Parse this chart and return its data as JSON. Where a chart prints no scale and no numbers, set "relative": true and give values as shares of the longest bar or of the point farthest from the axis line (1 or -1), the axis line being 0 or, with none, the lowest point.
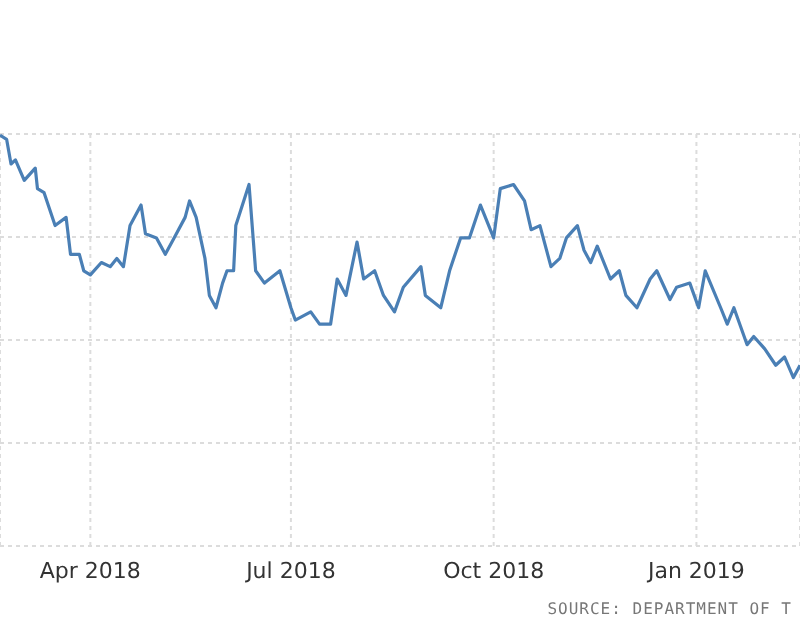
{
  "chart_data": {
    "type": "line",
    "relative": true,
    "grid": true,
    "legend": false,
    "marker": "none",
    "line_style": "solid",
    "x": [
      "2018-02-19",
      "2018-02-22",
      "2018-02-24",
      "2018-02-26",
      "2018-03-02",
      "2018-03-07",
      "2018-03-08",
      "2018-03-11",
      "2018-03-16",
      "2018-03-21",
      "2018-03-23",
      "2018-03-27",
      "2018-03-29",
      "2018-04-01",
      "2018-04-06",
      "2018-04-10",
      "2018-04-13",
      "2018-04-16",
      "2018-04-19",
      "2018-04-24",
      "2018-04-26",
      "2018-05-01",
      "2018-05-05",
      "2018-05-09",
      "2018-05-14",
      "2018-05-16",
      "2018-05-19",
      "2018-05-23",
      "2018-05-25",
      "2018-05-28",
      "2018-05-31",
      "2018-06-02",
      "2018-06-05",
      "2018-06-06",
      "2018-06-12",
      "2018-06-15",
      "2018-06-19",
      "2018-06-26",
      "2018-07-01",
      "2018-07-03",
      "2018-07-10",
      "2018-07-14",
      "2018-07-19",
      "2018-07-22",
      "2018-07-26",
      "2018-07-31",
      "2018-08-03",
      "2018-08-08",
      "2018-08-12",
      "2018-08-17",
      "2018-08-21",
      "2018-08-29",
      "2018-08-31",
      "2018-09-07",
      "2018-09-11",
      "2018-09-16",
      "2018-09-20",
      "2018-09-25",
      "2018-10-01",
      "2018-10-04",
      "2018-10-10",
      "2018-10-15",
      "2018-10-18",
      "2018-10-22",
      "2018-10-27",
      "2018-10-31",
      "2018-11-03",
      "2018-11-08",
      "2018-11-11",
      "2018-11-14",
      "2018-11-17",
      "2018-11-23",
      "2018-11-27",
      "2018-11-30",
      "2018-12-05",
      "2018-12-11",
      "2018-12-14",
      "2018-12-20",
      "2018-12-23",
      "2018-12-29",
      "2019-01-02",
      "2019-01-05",
      "2019-01-12",
      "2019-01-15",
      "2019-01-18",
      "2019-01-24",
      "2019-01-27",
      "2019-02-01",
      "2019-02-06",
      "2019-02-10",
      "2019-02-14",
      "2019-02-17"
    ],
    "series": [
      {
        "color": "#4a7fb5",
        "values": [
          1.0,
          0.99,
          0.93,
          0.94,
          0.89,
          0.92,
          0.87,
          0.86,
          0.78,
          0.8,
          0.71,
          0.71,
          0.67,
          0.66,
          0.69,
          0.68,
          0.7,
          0.68,
          0.78,
          0.83,
          0.76,
          0.75,
          0.71,
          0.75,
          0.8,
          0.84,
          0.8,
          0.7,
          0.61,
          0.58,
          0.64,
          0.67,
          0.67,
          0.78,
          0.88,
          0.67,
          0.64,
          0.67,
          0.58,
          0.55,
          0.57,
          0.54,
          0.54,
          0.65,
          0.61,
          0.74,
          0.65,
          0.67,
          0.61,
          0.57,
          0.63,
          0.68,
          0.61,
          0.58,
          0.67,
          0.75,
          0.75,
          0.83,
          0.75,
          0.87,
          0.88,
          0.84,
          0.77,
          0.78,
          0.68,
          0.7,
          0.75,
          0.78,
          0.72,
          0.69,
          0.73,
          0.65,
          0.67,
          0.61,
          0.58,
          0.65,
          0.67,
          0.6,
          0.63,
          0.64,
          0.58,
          0.67,
          0.58,
          0.54,
          0.58,
          0.49,
          0.51,
          0.48,
          0.44,
          0.46,
          0.41,
          0.44
        ]
      }
    ],
    "xlim": [
      "2018-02-19",
      "2019-02-17"
    ],
    "xticks": [
      {
        "value": "2018-04-01",
        "label": "Apr 2018"
      },
      {
        "value": "2018-07-01",
        "label": "Jul 2018"
      },
      {
        "value": "2018-10-01",
        "label": "Oct 2018"
      },
      {
        "value": "2019-01-01",
        "label": "Jan 2019"
      }
    ],
    "annotations": [
      "SOURCE: DEPARTMENT OF T"
    ]
  }
}
